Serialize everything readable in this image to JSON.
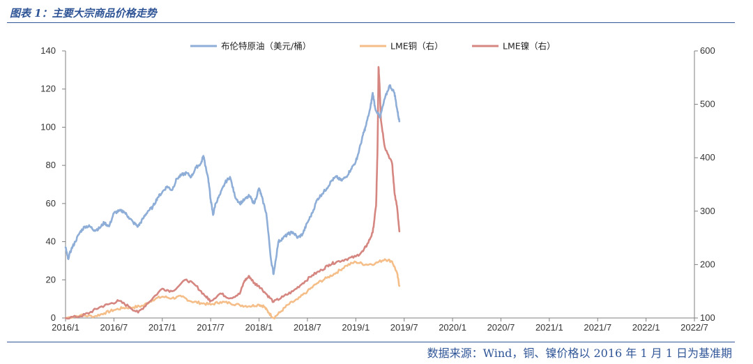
{
  "header": {
    "title": "图表 1：主要大宗商品价格走势"
  },
  "footer": {
    "source": "数据来源：Wind，铜、镍价格以 2016 年 1 月 1 日为基准期"
  },
  "chart_data": {
    "type": "line",
    "x_ticks": [
      "2016/1",
      "2016/7",
      "2017/1",
      "2017/7",
      "2018/1",
      "2018/7",
      "2019/1",
      "2019/7",
      "2020/1",
      "2020/7",
      "2021/1",
      "2021/7",
      "2022/1",
      "2022/7"
    ],
    "y_left": {
      "ylim": [
        0,
        140
      ],
      "ticks": [
        "0",
        "20",
        "40",
        "60",
        "80",
        "100",
        "120",
        "140"
      ]
    },
    "y_right": {
      "ylim": [
        100,
        600
      ],
      "ticks": [
        "100",
        "200",
        "300",
        "400",
        "500",
        "600"
      ]
    },
    "grid": false,
    "legend_position": "top",
    "series": [
      {
        "name": "布伦特原油（美元/桶）",
        "axis": "left",
        "color": "#8eaed8",
        "points": [
          [
            0,
            37
          ],
          [
            0.05,
            31
          ],
          [
            0.12,
            36
          ],
          [
            0.2,
            40
          ],
          [
            0.3,
            45
          ],
          [
            0.4,
            48
          ],
          [
            0.5,
            48
          ],
          [
            0.6,
            46
          ],
          [
            0.7,
            47
          ],
          [
            0.8,
            50
          ],
          [
            0.9,
            48
          ],
          [
            1.0,
            55
          ],
          [
            1.1,
            56
          ],
          [
            1.2,
            56
          ],
          [
            1.3,
            53
          ],
          [
            1.4,
            50
          ],
          [
            1.5,
            48
          ],
          [
            1.6,
            52
          ],
          [
            1.7,
            56
          ],
          [
            1.8,
            58
          ],
          [
            1.9,
            63
          ],
          [
            2.0,
            66
          ],
          [
            2.1,
            69
          ],
          [
            2.2,
            67
          ],
          [
            2.3,
            73
          ],
          [
            2.4,
            75
          ],
          [
            2.5,
            76
          ],
          [
            2.6,
            74
          ],
          [
            2.7,
            79
          ],
          [
            2.8,
            81
          ],
          [
            2.85,
            85
          ],
          [
            2.95,
            73
          ],
          [
            3.0,
            62
          ],
          [
            3.05,
            54
          ],
          [
            3.1,
            60
          ],
          [
            3.2,
            65
          ],
          [
            3.3,
            71
          ],
          [
            3.4,
            74
          ],
          [
            3.5,
            64
          ],
          [
            3.6,
            60
          ],
          [
            3.7,
            62
          ],
          [
            3.8,
            64
          ],
          [
            3.9,
            60
          ],
          [
            4.0,
            68
          ],
          [
            4.05,
            64
          ],
          [
            4.15,
            55
          ],
          [
            4.25,
            30
          ],
          [
            4.3,
            23
          ],
          [
            4.4,
            40
          ],
          [
            4.5,
            42
          ],
          [
            4.6,
            44
          ],
          [
            4.7,
            45
          ],
          [
            4.8,
            42
          ],
          [
            4.9,
            44
          ],
          [
            5.0,
            50
          ],
          [
            5.1,
            55
          ],
          [
            5.2,
            62
          ],
          [
            5.3,
            65
          ],
          [
            5.4,
            68
          ],
          [
            5.5,
            72
          ],
          [
            5.6,
            74
          ],
          [
            5.7,
            72
          ],
          [
            5.8,
            74
          ],
          [
            5.9,
            78
          ],
          [
            6.0,
            82
          ],
          [
            6.05,
            86
          ],
          [
            6.15,
            96
          ],
          [
            6.2,
            100
          ],
          [
            6.3,
            110
          ],
          [
            6.35,
            118
          ],
          [
            6.4,
            110
          ],
          [
            6.5,
            105
          ],
          [
            6.6,
            115
          ],
          [
            6.7,
            122
          ],
          [
            6.8,
            118
          ],
          [
            6.85,
            110
          ],
          [
            6.9,
            103
          ]
        ]
      },
      {
        "name": "LME铜（右）",
        "axis": "right",
        "color": "#f5be89",
        "points": [
          [
            0,
            100
          ],
          [
            0.3,
            105
          ],
          [
            0.6,
            103
          ],
          [
            0.8,
            109
          ],
          [
            1.0,
            115
          ],
          [
            1.2,
            119
          ],
          [
            1.4,
            120
          ],
          [
            1.6,
            123
          ],
          [
            1.8,
            134
          ],
          [
            2.0,
            140
          ],
          [
            2.2,
            137
          ],
          [
            2.4,
            140
          ],
          [
            2.6,
            131
          ],
          [
            2.8,
            128
          ],
          [
            3.0,
            125
          ],
          [
            3.2,
            130
          ],
          [
            3.4,
            128
          ],
          [
            3.6,
            124
          ],
          [
            3.8,
            122
          ],
          [
            4.0,
            125
          ],
          [
            4.1,
            122
          ],
          [
            4.2,
            110
          ],
          [
            4.3,
            100
          ],
          [
            4.45,
            112
          ],
          [
            4.6,
            125
          ],
          [
            4.8,
            135
          ],
          [
            5.0,
            150
          ],
          [
            5.2,
            165
          ],
          [
            5.4,
            175
          ],
          [
            5.6,
            185
          ],
          [
            5.8,
            198
          ],
          [
            6.0,
            205
          ],
          [
            6.2,
            200
          ],
          [
            6.4,
            202
          ],
          [
            6.6,
            210
          ],
          [
            6.75,
            206
          ],
          [
            6.85,
            185
          ],
          [
            6.9,
            160
          ]
        ]
      },
      {
        "name": "LME镍（右）",
        "axis": "right",
        "color": "#d58680",
        "points": [
          [
            0,
            100
          ],
          [
            0.3,
            103
          ],
          [
            0.5,
            110
          ],
          [
            0.7,
            120
          ],
          [
            0.9,
            126
          ],
          [
            1.1,
            132
          ],
          [
            1.3,
            122
          ],
          [
            1.5,
            110
          ],
          [
            1.7,
            128
          ],
          [
            2.0,
            155
          ],
          [
            2.2,
            150
          ],
          [
            2.5,
            172
          ],
          [
            2.7,
            160
          ],
          [
            2.9,
            140
          ],
          [
            3.0,
            132
          ],
          [
            3.2,
            146
          ],
          [
            3.4,
            137
          ],
          [
            3.6,
            145
          ],
          [
            3.7,
            170
          ],
          [
            3.8,
            178
          ],
          [
            3.9,
            165
          ],
          [
            4.0,
            160
          ],
          [
            4.15,
            145
          ],
          [
            4.3,
            130
          ],
          [
            4.5,
            140
          ],
          [
            4.7,
            150
          ],
          [
            4.9,
            165
          ],
          [
            5.1,
            180
          ],
          [
            5.3,
            190
          ],
          [
            5.45,
            200
          ],
          [
            5.6,
            205
          ],
          [
            5.8,
            210
          ],
          [
            6.0,
            215
          ],
          [
            6.15,
            225
          ],
          [
            6.25,
            240
          ],
          [
            6.35,
            260
          ],
          [
            6.42,
            310
          ],
          [
            6.45,
            420
          ],
          [
            6.47,
            570
          ],
          [
            6.49,
            540
          ],
          [
            6.52,
            470
          ],
          [
            6.6,
            420
          ],
          [
            6.75,
            390
          ],
          [
            6.8,
            335
          ],
          [
            6.85,
            310
          ],
          [
            6.9,
            262
          ]
        ]
      }
    ]
  }
}
